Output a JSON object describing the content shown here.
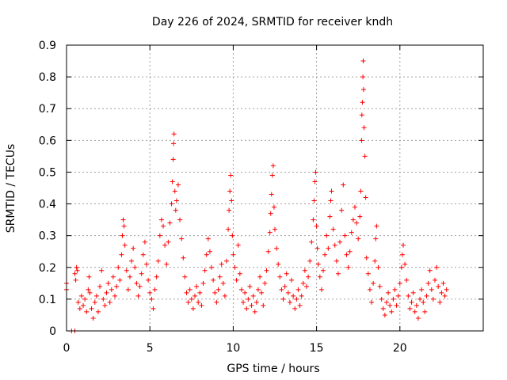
{
  "chart_data": {
    "type": "scatter",
    "title": "Day 226 of 2024, SRMTID for receiver kndh",
    "xlabel": "GPS time / hours",
    "ylabel": "SRMTID / TECUs",
    "xlim": [
      0,
      25
    ],
    "ylim": [
      0,
      0.9
    ],
    "xticks": [
      0,
      5,
      10,
      15,
      20
    ],
    "xtick_labels": [
      "0",
      "5",
      "10",
      "15",
      "20"
    ],
    "yticks": [
      0,
      0.1,
      0.2,
      0.3,
      0.4,
      0.5,
      0.6,
      0.7,
      0.8,
      0.9
    ],
    "ytick_labels": [
      "0",
      "0.1",
      "0.2",
      "0.3",
      "0.4",
      "0.5",
      "0.6",
      "0.7",
      "0.8",
      "0.9"
    ],
    "grid": true,
    "marker": "+",
    "color": "#ff0000",
    "series": [
      {
        "name": "SRMTID",
        "points": [
          [
            0.0,
            0.15
          ],
          [
            0.0,
            0.13
          ],
          [
            0.3,
            0.0
          ],
          [
            0.5,
            0.0
          ],
          [
            0.5,
            0.18
          ],
          [
            0.55,
            0.16
          ],
          [
            0.6,
            0.2
          ],
          [
            0.65,
            0.19
          ],
          [
            0.7,
            0.09
          ],
          [
            0.8,
            0.07
          ],
          [
            0.9,
            0.11
          ],
          [
            1.0,
            0.08
          ],
          [
            1.1,
            0.1
          ],
          [
            1.2,
            0.06
          ],
          [
            1.3,
            0.13
          ],
          [
            1.35,
            0.17
          ],
          [
            1.4,
            0.12
          ],
          [
            1.5,
            0.07
          ],
          [
            1.6,
            0.04
          ],
          [
            1.7,
            0.09
          ],
          [
            1.8,
            0.11
          ],
          [
            1.9,
            0.06
          ],
          [
            2.0,
            0.14
          ],
          [
            2.1,
            0.19
          ],
          [
            2.2,
            0.1
          ],
          [
            2.3,
            0.08
          ],
          [
            2.4,
            0.12
          ],
          [
            2.5,
            0.15
          ],
          [
            2.6,
            0.09
          ],
          [
            2.7,
            0.13
          ],
          [
            2.8,
            0.17
          ],
          [
            2.9,
            0.11
          ],
          [
            3.0,
            0.14
          ],
          [
            3.1,
            0.2
          ],
          [
            3.2,
            0.16
          ],
          [
            3.3,
            0.24
          ],
          [
            3.35,
            0.3
          ],
          [
            3.4,
            0.35
          ],
          [
            3.45,
            0.33
          ],
          [
            3.5,
            0.27
          ],
          [
            3.6,
            0.19
          ],
          [
            3.7,
            0.13
          ],
          [
            3.8,
            0.17
          ],
          [
            3.9,
            0.22
          ],
          [
            4.0,
            0.26
          ],
          [
            4.1,
            0.2
          ],
          [
            4.2,
            0.15
          ],
          [
            4.3,
            0.11
          ],
          [
            4.4,
            0.14
          ],
          [
            4.5,
            0.18
          ],
          [
            4.6,
            0.24
          ],
          [
            4.7,
            0.28
          ],
          [
            4.8,
            0.21
          ],
          [
            4.9,
            0.16
          ],
          [
            5.0,
            0.12
          ],
          [
            5.1,
            0.1
          ],
          [
            5.2,
            0.07
          ],
          [
            5.3,
            0.13
          ],
          [
            5.4,
            0.17
          ],
          [
            5.5,
            0.22
          ],
          [
            5.6,
            0.3
          ],
          [
            5.7,
            0.35
          ],
          [
            5.8,
            0.33
          ],
          [
            5.9,
            0.27
          ],
          [
            6.0,
            0.21
          ],
          [
            6.1,
            0.28
          ],
          [
            6.2,
            0.34
          ],
          [
            6.3,
            0.4
          ],
          [
            6.35,
            0.47
          ],
          [
            6.4,
            0.54
          ],
          [
            6.42,
            0.59
          ],
          [
            6.45,
            0.62
          ],
          [
            6.5,
            0.44
          ],
          [
            6.55,
            0.38
          ],
          [
            6.6,
            0.41
          ],
          [
            6.7,
            0.46
          ],
          [
            6.8,
            0.35
          ],
          [
            6.9,
            0.29
          ],
          [
            7.0,
            0.23
          ],
          [
            7.1,
            0.17
          ],
          [
            7.2,
            0.12
          ],
          [
            7.3,
            0.09
          ],
          [
            7.4,
            0.13
          ],
          [
            7.5,
            0.1
          ],
          [
            7.6,
            0.07
          ],
          [
            7.7,
            0.11
          ],
          [
            7.8,
            0.14
          ],
          [
            7.9,
            0.09
          ],
          [
            8.0,
            0.12
          ],
          [
            8.1,
            0.08
          ],
          [
            8.2,
            0.15
          ],
          [
            8.3,
            0.19
          ],
          [
            8.4,
            0.24
          ],
          [
            8.5,
            0.29
          ],
          [
            8.6,
            0.25
          ],
          [
            8.7,
            0.2
          ],
          [
            8.8,
            0.16
          ],
          [
            8.9,
            0.12
          ],
          [
            9.0,
            0.09
          ],
          [
            9.1,
            0.13
          ],
          [
            9.2,
            0.17
          ],
          [
            9.3,
            0.21
          ],
          [
            9.4,
            0.15
          ],
          [
            9.5,
            0.11
          ],
          [
            9.6,
            0.22
          ],
          [
            9.7,
            0.32
          ],
          [
            9.75,
            0.38
          ],
          [
            9.8,
            0.44
          ],
          [
            9.85,
            0.49
          ],
          [
            9.9,
            0.41
          ],
          [
            9.95,
            0.3
          ],
          [
            10.0,
            0.24
          ],
          [
            10.1,
            0.2
          ],
          [
            10.2,
            0.16
          ],
          [
            10.3,
            0.27
          ],
          [
            10.4,
            0.18
          ],
          [
            10.5,
            0.13
          ],
          [
            10.6,
            0.09
          ],
          [
            10.7,
            0.12
          ],
          [
            10.8,
            0.07
          ],
          [
            10.9,
            0.1
          ],
          [
            11.0,
            0.14
          ],
          [
            11.1,
            0.08
          ],
          [
            11.2,
            0.11
          ],
          [
            11.3,
            0.06
          ],
          [
            11.4,
            0.09
          ],
          [
            11.5,
            0.13
          ],
          [
            11.6,
            0.17
          ],
          [
            11.7,
            0.12
          ],
          [
            11.8,
            0.08
          ],
          [
            11.9,
            0.15
          ],
          [
            12.0,
            0.19
          ],
          [
            12.1,
            0.25
          ],
          [
            12.2,
            0.31
          ],
          [
            12.25,
            0.37
          ],
          [
            12.3,
            0.43
          ],
          [
            12.35,
            0.49
          ],
          [
            12.4,
            0.52
          ],
          [
            12.45,
            0.39
          ],
          [
            12.5,
            0.32
          ],
          [
            12.6,
            0.26
          ],
          [
            12.7,
            0.21
          ],
          [
            12.8,
            0.17
          ],
          [
            12.9,
            0.13
          ],
          [
            13.0,
            0.1
          ],
          [
            13.1,
            0.14
          ],
          [
            13.2,
            0.18
          ],
          [
            13.3,
            0.12
          ],
          [
            13.4,
            0.09
          ],
          [
            13.5,
            0.16
          ],
          [
            13.6,
            0.11
          ],
          [
            13.7,
            0.07
          ],
          [
            13.8,
            0.1
          ],
          [
            13.9,
            0.13
          ],
          [
            14.0,
            0.08
          ],
          [
            14.1,
            0.11
          ],
          [
            14.2,
            0.15
          ],
          [
            14.3,
            0.19
          ],
          [
            14.4,
            0.14
          ],
          [
            14.5,
            0.17
          ],
          [
            14.6,
            0.22
          ],
          [
            14.7,
            0.28
          ],
          [
            14.8,
            0.35
          ],
          [
            14.85,
            0.41
          ],
          [
            14.9,
            0.47
          ],
          [
            14.95,
            0.5
          ],
          [
            15.0,
            0.33
          ],
          [
            15.05,
            0.26
          ],
          [
            15.1,
            0.21
          ],
          [
            15.2,
            0.17
          ],
          [
            15.3,
            0.13
          ],
          [
            15.4,
            0.19
          ],
          [
            15.5,
            0.24
          ],
          [
            15.6,
            0.3
          ],
          [
            15.7,
            0.26
          ],
          [
            15.8,
            0.36
          ],
          [
            15.85,
            0.41
          ],
          [
            15.9,
            0.44
          ],
          [
            16.0,
            0.32
          ],
          [
            16.1,
            0.27
          ],
          [
            16.2,
            0.22
          ],
          [
            16.3,
            0.18
          ],
          [
            16.4,
            0.28
          ],
          [
            16.5,
            0.38
          ],
          [
            16.6,
            0.46
          ],
          [
            16.7,
            0.3
          ],
          [
            16.8,
            0.24
          ],
          [
            16.9,
            0.2
          ],
          [
            17.0,
            0.25
          ],
          [
            17.1,
            0.31
          ],
          [
            17.2,
            0.35
          ],
          [
            17.3,
            0.39
          ],
          [
            17.4,
            0.34
          ],
          [
            17.5,
            0.29
          ],
          [
            17.6,
            0.36
          ],
          [
            17.65,
            0.44
          ],
          [
            17.7,
            0.6
          ],
          [
            17.72,
            0.68
          ],
          [
            17.75,
            0.72
          ],
          [
            17.78,
            0.8
          ],
          [
            17.8,
            0.85
          ],
          [
            17.82,
            0.76
          ],
          [
            17.85,
            0.64
          ],
          [
            17.9,
            0.55
          ],
          [
            17.95,
            0.42
          ],
          [
            18.0,
            0.23
          ],
          [
            18.1,
            0.18
          ],
          [
            18.2,
            0.13
          ],
          [
            18.3,
            0.09
          ],
          [
            18.4,
            0.15
          ],
          [
            18.5,
            0.22
          ],
          [
            18.55,
            0.29
          ],
          [
            18.6,
            0.33
          ],
          [
            18.7,
            0.2
          ],
          [
            18.8,
            0.14
          ],
          [
            18.9,
            0.1
          ],
          [
            19.0,
            0.07
          ],
          [
            19.1,
            0.05
          ],
          [
            19.2,
            0.09
          ],
          [
            19.3,
            0.12
          ],
          [
            19.4,
            0.08
          ],
          [
            19.5,
            0.06
          ],
          [
            19.6,
            0.1
          ],
          [
            19.7,
            0.13
          ],
          [
            19.8,
            0.08
          ],
          [
            19.9,
            0.11
          ],
          [
            20.0,
            0.15
          ],
          [
            20.1,
            0.2
          ],
          [
            20.15,
            0.24
          ],
          [
            20.2,
            0.27
          ],
          [
            20.3,
            0.21
          ],
          [
            20.4,
            0.16
          ],
          [
            20.5,
            0.11
          ],
          [
            20.6,
            0.07
          ],
          [
            20.7,
            0.09
          ],
          [
            20.8,
            0.12
          ],
          [
            20.9,
            0.06
          ],
          [
            21.0,
            0.08
          ],
          [
            21.1,
            0.04
          ],
          [
            21.2,
            0.1
          ],
          [
            21.3,
            0.13
          ],
          [
            21.4,
            0.09
          ],
          [
            21.5,
            0.06
          ],
          [
            21.6,
            0.11
          ],
          [
            21.7,
            0.15
          ],
          [
            21.8,
            0.19
          ],
          [
            21.9,
            0.13
          ],
          [
            22.0,
            0.1
          ],
          [
            22.1,
            0.16
          ],
          [
            22.2,
            0.2
          ],
          [
            22.3,
            0.14
          ],
          [
            22.4,
            0.09
          ],
          [
            22.5,
            0.12
          ],
          [
            22.6,
            0.15
          ],
          [
            22.7,
            0.11
          ],
          [
            22.8,
            0.13
          ]
        ]
      }
    ]
  }
}
